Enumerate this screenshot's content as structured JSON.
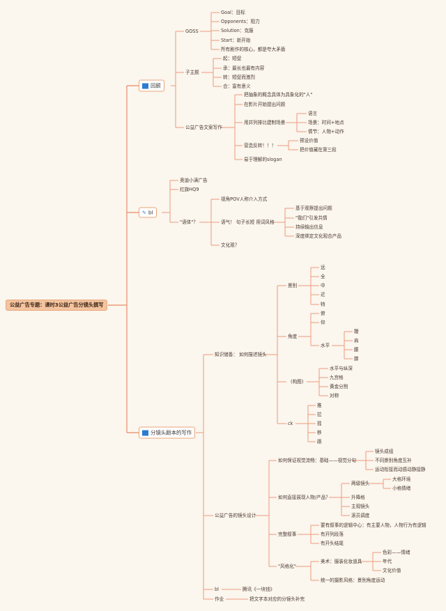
{
  "root": "公益广告专题：课时3公益广告分镜头撰写",
  "review": {
    "label": "回顾",
    "goss": {
      "label": "GOSS",
      "items": [
        "Goal：目标",
        "Opponents：阻力",
        "Solution：克服",
        "Start：新开始",
        "所有剧作的核心，都是夸大矛盾"
      ]
    },
    "subtheme": {
      "label": "子主题",
      "items": [
        "起：短促",
        "承：最长也最有内容",
        "转：短促而激烈",
        "合：富有意义"
      ]
    },
    "copywriting": {
      "label": "公益广告文案写作",
      "items": [
        "把抽象的概念具体为具象化的\"人\"",
        "在影片开始提出问题",
        "用并列排比建制场景",
        "营造反转！！！",
        "易于理解的slogan"
      ],
      "scene_items": [
        "语言",
        "场景：时间+地点",
        "情节：人物+动作"
      ],
      "twist_items": [
        "预设价值",
        "把价值藏在第三段"
      ]
    }
  },
  "bl_branch": {
    "label": "bl",
    "items": [
      "奥迪小满广告",
      "红旗HQ9",
      "\"语体\"？"
    ],
    "yuti": {
      "items": [
        "视角POV人称介入方式",
        "语气！ 句子长短 用词风格",
        "文化观？"
      ],
      "tone_items": [
        "基于观察提出问题",
        "\"我们\"引发共情",
        "持续输出信息",
        "深度绑定文化观合产品"
      ]
    }
  },
  "storyboard": {
    "label": "分镜头剧本的写作",
    "knowledge": {
      "label": "知识储备： 如何描述镜头",
      "shot_size": {
        "label": "景别",
        "items": [
          "远",
          "全",
          "中",
          "近",
          "特"
        ]
      },
      "angle": {
        "label": "角度",
        "items": [
          "俯",
          "仰",
          "水平"
        ],
        "level_items": [
          "鞭",
          "肩",
          "腰",
          "膝"
        ]
      },
      "composition": {
        "label": "(构图)",
        "items": [
          "水平与纵深",
          "九宫格",
          "黄金分割",
          "对称"
        ]
      },
      "camera": {
        "label": "ck",
        "items": [
          "推",
          "拉",
          "摇",
          "移",
          "跟"
        ]
      }
    },
    "design": {
      "label": "公益广告的镜头设计",
      "visual_flow": {
        "label": "如何保证视觉流畅：基础——视觉分句",
        "items": [
          "镜头成组",
          "不同景别角度互补",
          "运动衔接而动感动静接静"
        ]
      },
      "character": {
        "label": "如何直接展现人物/产品？",
        "items": [
          "两级镜头",
          "升降格",
          "主观镜头",
          "滚员调度"
        ],
        "two_level_items": [
          "大格环境",
          "小格情绪"
        ]
      },
      "narrative": {
        "label": "完整叙事",
        "items": [
          "要有叙事的逻辑中心：有主要人物，人物行为有逻辑",
          "有开列段落",
          "有开头结尾"
        ]
      },
      "stylize": {
        "label": "\"风格化\"",
        "items": [
          "美术：服装化妆道具",
          "统一的摄影风格：景别角度运动"
        ],
        "art_items": [
          "色彩——情绪",
          "年代",
          "文化价值"
        ]
      }
    },
    "bl": {
      "label": "bl",
      "item": "腾讯《一块钱》"
    },
    "homework": {
      "label": "作业",
      "item": "把文字本对应的分镜头补完"
    }
  },
  "colors": {
    "line": "#eb9b7c",
    "background": "#fbf6ee",
    "root_fill": "#f3c49f",
    "flag": "#2c7bd1"
  },
  "icons": {
    "review": "flag-icon",
    "bl": "drawing-icon",
    "storyboard": "flag-icon"
  }
}
